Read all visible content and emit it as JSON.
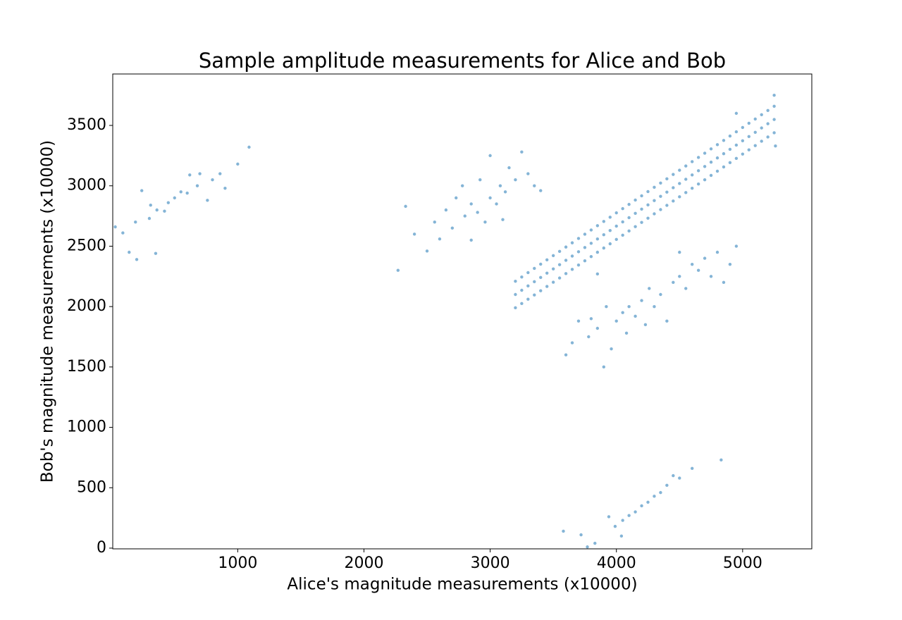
{
  "chart_data": {
    "type": "scatter",
    "title": "Sample amplitude measurements for Alice and Bob",
    "xlabel": "Alice's magnitude measurements (x10000)",
    "ylabel": "Bob's magnitude measurements (x10000)",
    "color": "#1f77b4",
    "xlim": [
      10,
      5548
    ],
    "ylim": [
      -6,
      3926
    ],
    "xticks": [
      1000,
      2000,
      3000,
      4000,
      5000
    ],
    "yticks": [
      0,
      500,
      1000,
      1500,
      2000,
      2500,
      3000,
      3500
    ],
    "x": [
      30,
      90,
      140,
      200,
      190,
      300,
      310,
      350,
      360,
      420,
      450,
      500,
      550,
      600,
      620,
      680,
      700,
      760,
      800,
      860,
      900,
      1000,
      1090,
      240,
      2270,
      2330,
      2400,
      2500,
      2560,
      2600,
      2650,
      2700,
      2730,
      2800,
      2850,
      2900,
      2920,
      2960,
      3000,
      3050,
      3080,
      3120,
      3150,
      3200,
      3250,
      3300,
      3350,
      3400,
      2850,
      2780,
      3000,
      3100,
      3600,
      3650,
      3700,
      3780,
      3800,
      3850,
      3900,
      3920,
      3960,
      4000,
      4050,
      4080,
      4100,
      4150,
      4200,
      4230,
      4260,
      4300,
      4350,
      4400,
      4450,
      4500,
      4550,
      4600,
      4650,
      4700,
      4750,
      4800,
      4850,
      4900,
      4950,
      3850,
      4500,
      3580,
      3720,
      3770,
      3830,
      3940,
      3990,
      4050,
      4100,
      4150,
      4200,
      4250,
      4300,
      4350,
      4400,
      4450,
      4500,
      4600,
      4830,
      4040,
      3200,
      3200,
      3200,
      3250,
      3250,
      3250,
      3300,
      3300,
      3300,
      3350,
      3350,
      3350,
      3400,
      3400,
      3400,
      3450,
      3450,
      3450,
      3500,
      3500,
      3500,
      3550,
      3550,
      3550,
      3600,
      3600,
      3600,
      3650,
      3650,
      3650,
      3700,
      3700,
      3700,
      3750,
      3750,
      3750,
      3800,
      3800,
      3800,
      3850,
      3850,
      3850,
      3900,
      3900,
      3900,
      3950,
      3950,
      3950,
      4000,
      4000,
      4000,
      4050,
      4050,
      4050,
      4100,
      4100,
      4100,
      4150,
      4150,
      4150,
      4200,
      4200,
      4200,
      4250,
      4250,
      4250,
      4300,
      4300,
      4300,
      4350,
      4350,
      4350,
      4400,
      4400,
      4400,
      4450,
      4450,
      4450,
      4500,
      4500,
      4500,
      4550,
      4550,
      4550,
      4600,
      4600,
      4600,
      4650,
      4650,
      4650,
      4700,
      4700,
      4700,
      4750,
      4750,
      4750,
      4800,
      4800,
      4800,
      4850,
      4850,
      4850,
      4900,
      4900,
      4900,
      4950,
      4950,
      4950,
      5000,
      5000,
      5000,
      5050,
      5050,
      5050,
      5100,
      5100,
      5100,
      5150,
      5150,
      5150,
      5200,
      5200,
      5200,
      5250,
      5250,
      5250,
      5250,
      4950,
      5260
    ],
    "values": [
      2660,
      2610,
      2450,
      2390,
      2700,
      2730,
      2840,
      2440,
      2800,
      2790,
      2860,
      2900,
      2950,
      2940,
      3090,
      3000,
      3100,
      2880,
      3050,
      3100,
      2980,
      3180,
      3320,
      2960,
      2300,
      2830,
      2600,
      2460,
      2700,
      2560,
      2800,
      2650,
      2900,
      2750,
      2850,
      2780,
      3050,
      2700,
      2900,
      2850,
      3000,
      2950,
      3150,
      3050,
      3280,
      3100,
      3000,
      2960,
      2550,
      3000,
      3250,
      2720,
      1600,
      1700,
      1880,
      1750,
      1900,
      1820,
      1500,
      2000,
      1650,
      1880,
      1950,
      1780,
      2000,
      1920,
      2050,
      1850,
      2150,
      2000,
      2100,
      1880,
      2200,
      2250,
      2150,
      2350,
      2300,
      2400,
      2250,
      2450,
      2200,
      2350,
      2500,
      2270,
      2450,
      140,
      110,
      10,
      40,
      260,
      180,
      230,
      270,
      300,
      350,
      380,
      430,
      460,
      520,
      600,
      580,
      660,
      730,
      100,
      2100,
      2210,
      1990,
      2135,
      2245,
      2025,
      2171,
      2281,
      2061,
      2206,
      2316,
      2096,
      2241,
      2351,
      2131,
      2277,
      2387,
      2167,
      2312,
      2422,
      2202,
      2347,
      2457,
      2237,
      2383,
      2493,
      2273,
      2418,
      2528,
      2308,
      2454,
      2564,
      2344,
      2489,
      2599,
      2379,
      2524,
      2634,
      2414,
      2560,
      2670,
      2450,
      2595,
      2705,
      2485,
      2630,
      2740,
      2520,
      2666,
      2776,
      2556,
      2701,
      2811,
      2591,
      2736,
      2846,
      2626,
      2772,
      2882,
      2662,
      2807,
      2917,
      2697,
      2842,
      2952,
      2732,
      2878,
      2988,
      2768,
      2913,
      3023,
      2803,
      2948,
      3058,
      2838,
      2984,
      3094,
      2874,
      3019,
      3129,
      2909,
      3054,
      3164,
      2944,
      3090,
      3200,
      2980,
      3125,
      3235,
      3015,
      3160,
      3270,
      3050,
      3196,
      3306,
      3086,
      3231,
      3341,
      3121,
      3266,
      3376,
      3156,
      3302,
      3412,
      3192,
      3337,
      3447,
      3227,
      3373,
      3483,
      3263,
      3408,
      3518,
      3298,
      3443,
      3553,
      3333,
      3479,
      3589,
      3369,
      3514,
      3624,
      3404,
      3549,
      3659,
      3439,
      3750,
      3600,
      3330
    ]
  }
}
